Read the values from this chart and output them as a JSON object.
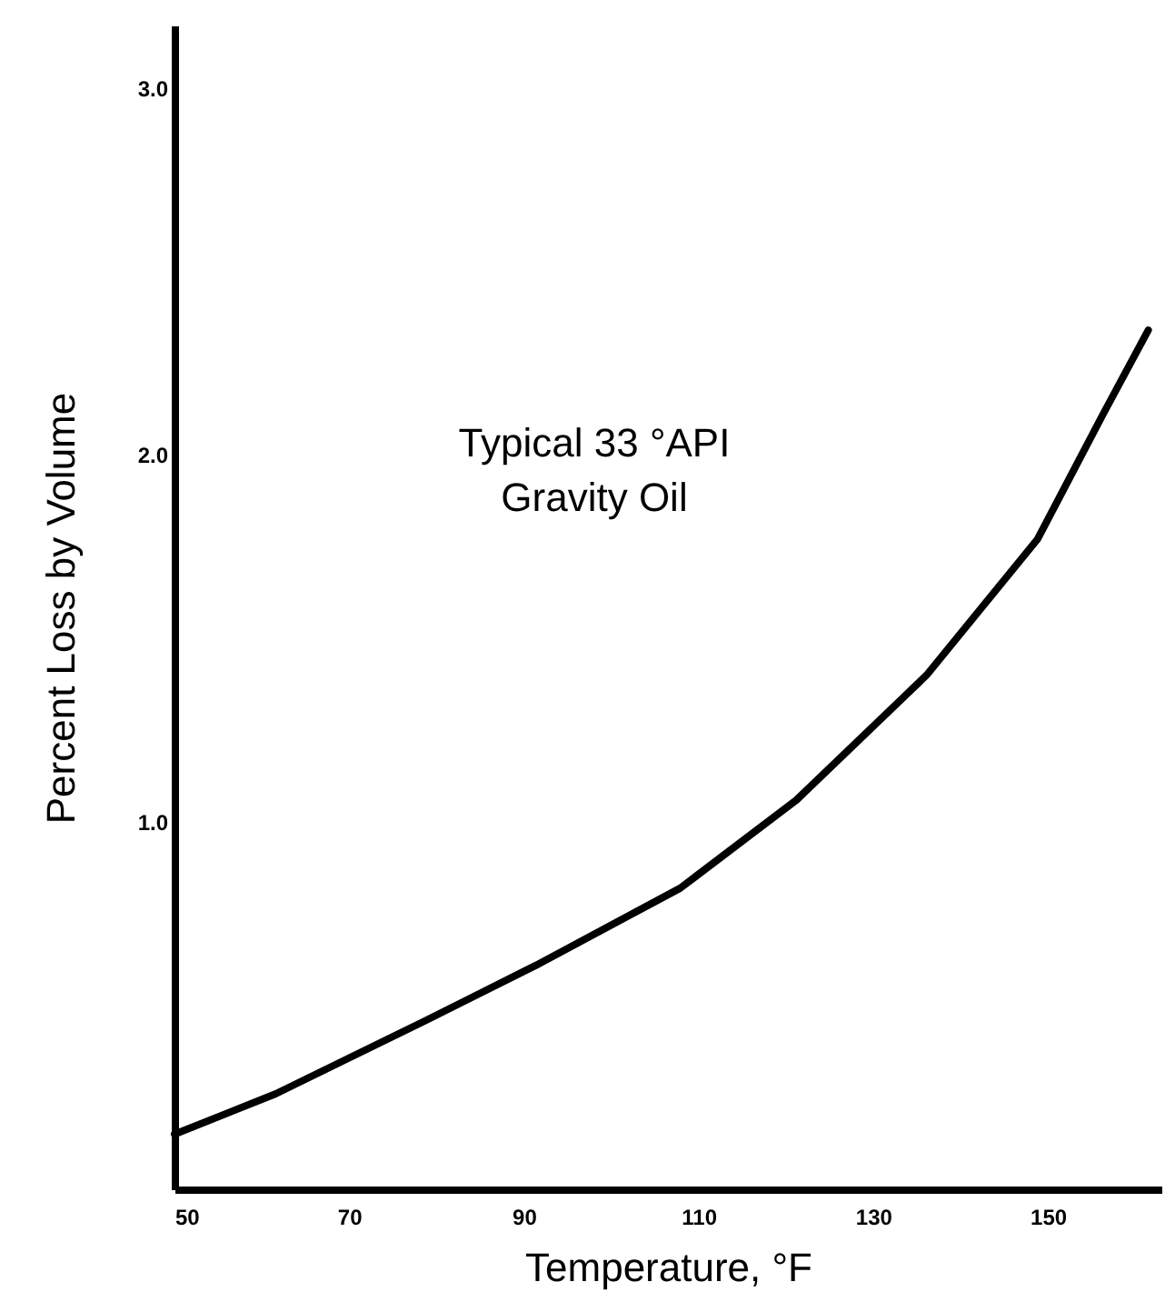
{
  "chart_data": {
    "type": "line",
    "xlabel": "Temperature, °F",
    "ylabel": "Percent Loss by Volume",
    "annotations": [
      "Typical 33 °API\nGravity Oil"
    ],
    "x": [
      50,
      61.6,
      78.8,
      91.4,
      107.9,
      121.2,
      136.1,
      148.8,
      156.3,
      161.5
    ],
    "series": [
      {
        "color": "#000000",
        "values": [
          0.15,
          0.26,
          0.46,
          0.61,
          0.82,
          1.06,
          1.4,
          1.77,
          2.11,
          2.34
        ]
      }
    ],
    "xlim": [
      50,
      163
    ],
    "xticks": [
      50,
      70,
      90,
      110,
      130,
      150
    ],
    "ylim": [
      0,
      3.17
    ],
    "yticks": [
      {
        "value": 1,
        "label": "1.0"
      },
      {
        "value": 2,
        "label": "2.0"
      },
      {
        "value": 3,
        "label": "3.0"
      }
    ],
    "grid": false,
    "legend": false,
    "marker": "none",
    "line_style": "solid"
  }
}
